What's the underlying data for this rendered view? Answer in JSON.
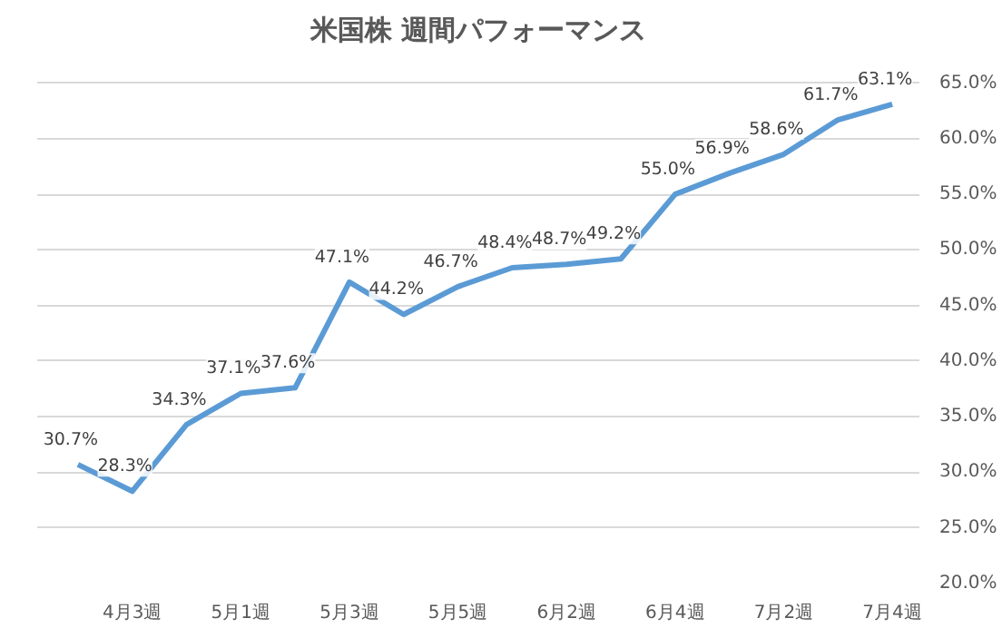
{
  "chart_data": {
    "type": "line",
    "title": "米国株 週間パフォーマンス",
    "categories": [
      null,
      "4月3週",
      null,
      "5月1週",
      null,
      "5月3週",
      null,
      "5月5週",
      null,
      "6月2週",
      null,
      "6月4週",
      null,
      "7月2週",
      null,
      "7月4週"
    ],
    "series": [
      {
        "color": "#5b9bd5",
        "values": [
          30.7,
          28.3,
          34.3,
          37.1,
          37.6,
          47.1,
          44.2,
          46.7,
          48.4,
          48.7,
          49.2,
          55.0,
          56.9,
          58.6,
          61.7,
          63.1
        ]
      }
    ],
    "ylim": [
      20,
      65
    ],
    "yticks": [
      {
        "value": 20,
        "label": "20.0%"
      },
      {
        "value": 25,
        "label": "25.0%"
      },
      {
        "value": 30,
        "label": "30.0%"
      },
      {
        "value": 35,
        "label": "35.0%"
      },
      {
        "value": 40,
        "label": "40.0%"
      },
      {
        "value": 45,
        "label": "45.0%"
      },
      {
        "value": 50,
        "label": "50.0%"
      },
      {
        "value": 55,
        "label": "55.0%"
      },
      {
        "value": 60,
        "label": "60.0%"
      },
      {
        "value": 65,
        "label": "65.0%"
      }
    ],
    "value_labels": [
      "30.7%",
      "28.3%",
      "34.3%",
      "37.1%",
      "37.6%",
      "47.1%",
      "44.2%",
      "46.7%",
      "48.4%",
      "48.7%",
      "49.2%",
      "55.0%",
      "56.9%",
      "58.6%",
      "61.7%",
      "63.1%"
    ],
    "grid": "y",
    "marker": "none",
    "line_style": "solid"
  }
}
